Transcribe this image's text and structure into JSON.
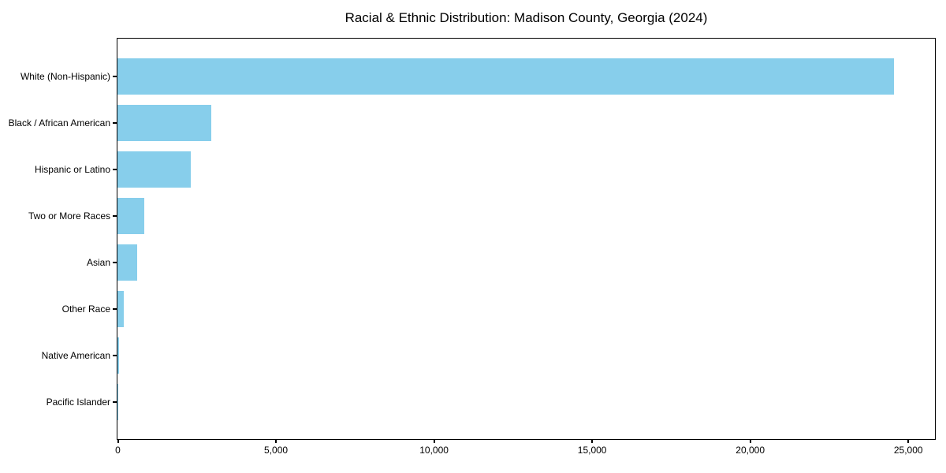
{
  "chart_data": {
    "type": "bar",
    "orientation": "horizontal",
    "title": "Racial & Ethnic Distribution: Madison County, Georgia (2024)",
    "categories": [
      "White (Non-Hispanic)",
      "Black / African American",
      "Hispanic or Latino",
      "Two or More Races",
      "Asian",
      "Other Race",
      "Native American",
      "Pacific Islander"
    ],
    "values": [
      24550,
      2970,
      2325,
      860,
      635,
      205,
      60,
      15
    ],
    "xlabel": "",
    "ylabel": "",
    "xlim": [
      0,
      25830
    ],
    "x_ticks": [
      0,
      5000,
      10000,
      15000,
      20000,
      25000
    ],
    "x_tick_labels": [
      "0",
      "5,000",
      "10,000",
      "15,000",
      "20,000",
      "25,000"
    ],
    "bar_color": "#87CEEB",
    "text_color": "#000000",
    "spine_color": "#000000",
    "grid": false,
    "legend": null
  }
}
